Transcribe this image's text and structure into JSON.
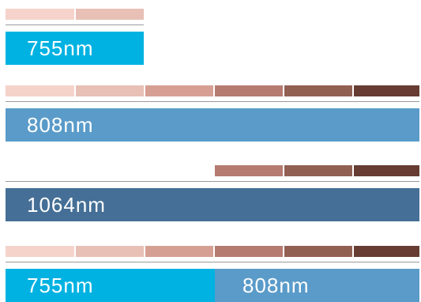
{
  "skin_tones": [
    "#f5d3cb",
    "#e8c0b6",
    "#d5a093",
    "#b57b70",
    "#925f53",
    "#673c33"
  ],
  "groups": [
    {
      "swatch_indices": [
        0,
        1
      ],
      "label": "755nm",
      "band_color": "#00b2e2"
    },
    {
      "swatch_indices": [
        0,
        1,
        2,
        3,
        4,
        5
      ],
      "label": "808nm",
      "band_color": "#5a9bc9"
    },
    {
      "swatch_indices": [
        3,
        4,
        5
      ],
      "label": "1064nm",
      "band_color": "#456f96"
    },
    {
      "swatch_indices": [
        0,
        1,
        2,
        3,
        4,
        5
      ],
      "segments": [
        {
          "label": "755nm",
          "color": "#00b2e2"
        },
        {
          "label": "808nm",
          "color": "#5a9bc9"
        }
      ]
    }
  ]
}
